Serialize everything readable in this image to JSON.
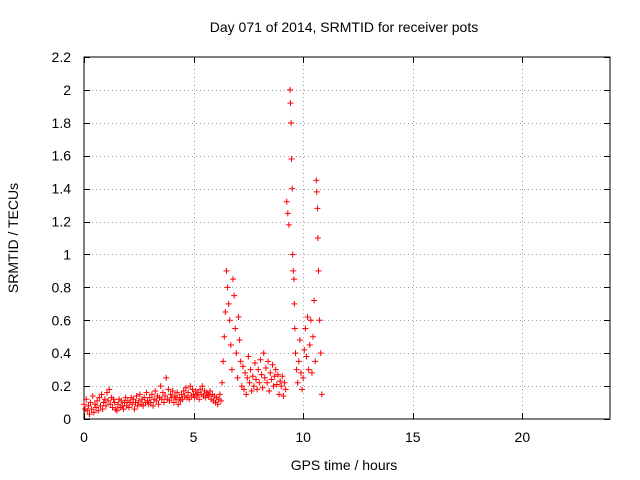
{
  "chart_data": {
    "type": "scatter",
    "title": "Day 071 of 2014, SRMTID for receiver pots",
    "xlabel": "GPS time / hours",
    "ylabel": "SRMTID / TECUs",
    "xlim": [
      0,
      24
    ],
    "ylim": [
      0,
      2.2
    ],
    "xticks": [
      0,
      5,
      10,
      15,
      20
    ],
    "yticks": [
      0,
      0.2,
      0.4,
      0.6,
      0.8,
      1,
      1.2,
      1.4,
      1.6,
      1.8,
      2,
      2.2
    ],
    "ytick_labels": [
      "0",
      "0.2",
      "0.4",
      "0.6",
      "0.8",
      "1",
      "1.2",
      "1.4",
      "1.6",
      "1.8",
      "2",
      "2.2"
    ],
    "grid": true,
    "marker": "+",
    "color": "#ff0000",
    "series": [
      {
        "name": "SRMTID",
        "points": [
          [
            0.0,
            0.09
          ],
          [
            0.05,
            0.06
          ],
          [
            0.1,
            0.12
          ],
          [
            0.15,
            0.05
          ],
          [
            0.2,
            0.08
          ],
          [
            0.25,
            0.03
          ],
          [
            0.3,
            0.1
          ],
          [
            0.35,
            0.06
          ],
          [
            0.4,
            0.14
          ],
          [
            0.45,
            0.04
          ],
          [
            0.5,
            0.09
          ],
          [
            0.55,
            0.07
          ],
          [
            0.6,
            0.11
          ],
          [
            0.65,
            0.05
          ],
          [
            0.7,
            0.13
          ],
          [
            0.75,
            0.08
          ],
          [
            0.8,
            0.15
          ],
          [
            0.85,
            0.06
          ],
          [
            0.9,
            0.1
          ],
          [
            0.95,
            0.12
          ],
          [
            1.0,
            0.08
          ],
          [
            1.05,
            0.16
          ],
          [
            1.1,
            0.11
          ],
          [
            1.15,
            0.18
          ],
          [
            1.2,
            0.09
          ],
          [
            1.25,
            0.13
          ],
          [
            1.3,
            0.07
          ],
          [
            1.35,
            0.12
          ],
          [
            1.4,
            0.1
          ],
          [
            1.45,
            0.06
          ],
          [
            1.5,
            0.05
          ],
          [
            1.55,
            0.09
          ],
          [
            1.6,
            0.12
          ],
          [
            1.65,
            0.07
          ],
          [
            1.7,
            0.11
          ],
          [
            1.75,
            0.08
          ],
          [
            1.8,
            0.06
          ],
          [
            1.85,
            0.1
          ],
          [
            1.9,
            0.13
          ],
          [
            1.95,
            0.08
          ],
          [
            2.0,
            0.11
          ],
          [
            2.05,
            0.07
          ],
          [
            2.1,
            0.1
          ],
          [
            2.15,
            0.13
          ],
          [
            2.2,
            0.09
          ],
          [
            2.25,
            0.12
          ],
          [
            2.3,
            0.06
          ],
          [
            2.35,
            0.1
          ],
          [
            2.4,
            0.14
          ],
          [
            2.45,
            0.08
          ],
          [
            2.5,
            0.11
          ],
          [
            2.55,
            0.15
          ],
          [
            2.6,
            0.09
          ],
          [
            2.65,
            0.12
          ],
          [
            2.7,
            0.08
          ],
          [
            2.75,
            0.13
          ],
          [
            2.8,
            0.1
          ],
          [
            2.85,
            0.16
          ],
          [
            2.9,
            0.11
          ],
          [
            2.95,
            0.09
          ],
          [
            3.0,
            0.13
          ],
          [
            3.05,
            0.1
          ],
          [
            3.1,
            0.15
          ],
          [
            3.15,
            0.08
          ],
          [
            3.2,
            0.12
          ],
          [
            3.25,
            0.17
          ],
          [
            3.3,
            0.11
          ],
          [
            3.35,
            0.14
          ],
          [
            3.4,
            0.09
          ],
          [
            3.45,
            0.13
          ],
          [
            3.5,
            0.2
          ],
          [
            3.55,
            0.12
          ],
          [
            3.6,
            0.16
          ],
          [
            3.65,
            0.1
          ],
          [
            3.7,
            0.14
          ],
          [
            3.75,
            0.25
          ],
          [
            3.8,
            0.12
          ],
          [
            3.85,
            0.18
          ],
          [
            3.9,
            0.11
          ],
          [
            3.95,
            0.15
          ],
          [
            4.0,
            0.13
          ],
          [
            4.05,
            0.17
          ],
          [
            4.1,
            0.1
          ],
          [
            4.15,
            0.14
          ],
          [
            4.2,
            0.12
          ],
          [
            4.25,
            0.16
          ],
          [
            4.3,
            0.09
          ],
          [
            4.35,
            0.13
          ],
          [
            4.4,
            0.11
          ],
          [
            4.45,
            0.15
          ],
          [
            4.5,
            0.12
          ],
          [
            4.55,
            0.17
          ],
          [
            4.6,
            0.14
          ],
          [
            4.65,
            0.19
          ],
          [
            4.7,
            0.13
          ],
          [
            4.75,
            0.16
          ],
          [
            4.8,
            0.12
          ],
          [
            4.85,
            0.2
          ],
          [
            4.9,
            0.14
          ],
          [
            4.95,
            0.18
          ],
          [
            5.0,
            0.15
          ],
          [
            5.05,
            0.13
          ],
          [
            5.1,
            0.17
          ],
          [
            5.15,
            0.14
          ],
          [
            5.2,
            0.16
          ],
          [
            5.25,
            0.12
          ],
          [
            5.3,
            0.18
          ],
          [
            5.35,
            0.15
          ],
          [
            5.4,
            0.2
          ],
          [
            5.45,
            0.14
          ],
          [
            5.5,
            0.17
          ],
          [
            5.55,
            0.13
          ],
          [
            5.6,
            0.16
          ],
          [
            5.65,
            0.15
          ],
          [
            5.7,
            0.14
          ],
          [
            5.75,
            0.17
          ],
          [
            5.8,
            0.12
          ],
          [
            5.85,
            0.15
          ],
          [
            5.9,
            0.11
          ],
          [
            5.95,
            0.14
          ],
          [
            6.0,
            0.1
          ],
          [
            6.05,
            0.13
          ],
          [
            6.1,
            0.09
          ],
          [
            6.15,
            0.12
          ],
          [
            6.2,
            0.15
          ],
          [
            6.25,
            0.11
          ],
          [
            6.3,
            0.22
          ],
          [
            6.35,
            0.35
          ],
          [
            6.4,
            0.5
          ],
          [
            6.45,
            0.65
          ],
          [
            6.5,
            0.9
          ],
          [
            6.55,
            0.8
          ],
          [
            6.6,
            0.7
          ],
          [
            6.65,
            0.6
          ],
          [
            6.7,
            0.45
          ],
          [
            6.75,
            0.3
          ],
          [
            6.8,
            0.85
          ],
          [
            6.85,
            0.75
          ],
          [
            6.9,
            0.55
          ],
          [
            6.95,
            0.4
          ],
          [
            7.0,
            0.25
          ],
          [
            7.05,
            0.62
          ],
          [
            7.1,
            0.48
          ],
          [
            7.15,
            0.35
          ],
          [
            7.2,
            0.2
          ],
          [
            7.25,
            0.32
          ],
          [
            7.3,
            0.18
          ],
          [
            7.35,
            0.28
          ],
          [
            7.4,
            0.15
          ],
          [
            7.45,
            0.25
          ],
          [
            7.5,
            0.38
          ],
          [
            7.55,
            0.22
          ],
          [
            7.6,
            0.3
          ],
          [
            7.65,
            0.17
          ],
          [
            7.7,
            0.26
          ],
          [
            7.75,
            0.2
          ],
          [
            7.8,
            0.34
          ],
          [
            7.85,
            0.24
          ],
          [
            7.9,
            0.18
          ],
          [
            7.95,
            0.3
          ],
          [
            8.0,
            0.22
          ],
          [
            8.05,
            0.36
          ],
          [
            8.1,
            0.27
          ],
          [
            8.15,
            0.19
          ],
          [
            8.2,
            0.4
          ],
          [
            8.25,
            0.25
          ],
          [
            8.3,
            0.31
          ],
          [
            8.35,
            0.22
          ],
          [
            8.4,
            0.35
          ],
          [
            8.45,
            0.17
          ],
          [
            8.5,
            0.28
          ],
          [
            8.55,
            0.24
          ],
          [
            8.6,
            0.33
          ],
          [
            8.65,
            0.2
          ],
          [
            8.7,
            0.26
          ],
          [
            8.75,
            0.3
          ],
          [
            8.8,
            0.21
          ],
          [
            8.85,
            0.27
          ],
          [
            8.9,
            0.15
          ],
          [
            8.95,
            0.23
          ],
          [
            9.0,
            0.2
          ],
          [
            9.05,
            0.26
          ],
          [
            9.1,
            0.14
          ],
          [
            9.15,
            0.22
          ],
          [
            9.2,
            0.18
          ],
          [
            9.25,
            1.32
          ],
          [
            9.3,
            1.25
          ],
          [
            9.35,
            1.18
          ],
          [
            9.4,
            2.0
          ],
          [
            9.42,
            1.92
          ],
          [
            9.45,
            1.8
          ],
          [
            9.47,
            1.58
          ],
          [
            9.5,
            1.4
          ],
          [
            9.52,
            1.0
          ],
          [
            9.55,
            0.9
          ],
          [
            9.58,
            0.85
          ],
          [
            9.6,
            0.7
          ],
          [
            9.62,
            0.55
          ],
          [
            9.65,
            0.4
          ],
          [
            9.7,
            0.3
          ],
          [
            9.75,
            0.22
          ],
          [
            9.8,
            0.35
          ],
          [
            9.85,
            0.48
          ],
          [
            9.9,
            0.28
          ],
          [
            9.95,
            0.18
          ],
          [
            10.0,
            0.25
          ],
          [
            10.05,
            0.42
          ],
          [
            10.1,
            0.55
          ],
          [
            10.15,
            0.38
          ],
          [
            10.2,
            0.62
          ],
          [
            10.25,
            0.3
          ],
          [
            10.3,
            0.45
          ],
          [
            10.35,
            0.6
          ],
          [
            10.4,
            0.28
          ],
          [
            10.45,
            0.5
          ],
          [
            10.5,
            0.72
          ],
          [
            10.55,
            0.35
          ],
          [
            10.6,
            1.45
          ],
          [
            10.62,
            1.38
          ],
          [
            10.65,
            1.28
          ],
          [
            10.67,
            1.1
          ],
          [
            10.7,
            0.9
          ],
          [
            10.75,
            0.6
          ],
          [
            10.8,
            0.4
          ],
          [
            10.85,
            0.15
          ]
        ]
      }
    ]
  }
}
